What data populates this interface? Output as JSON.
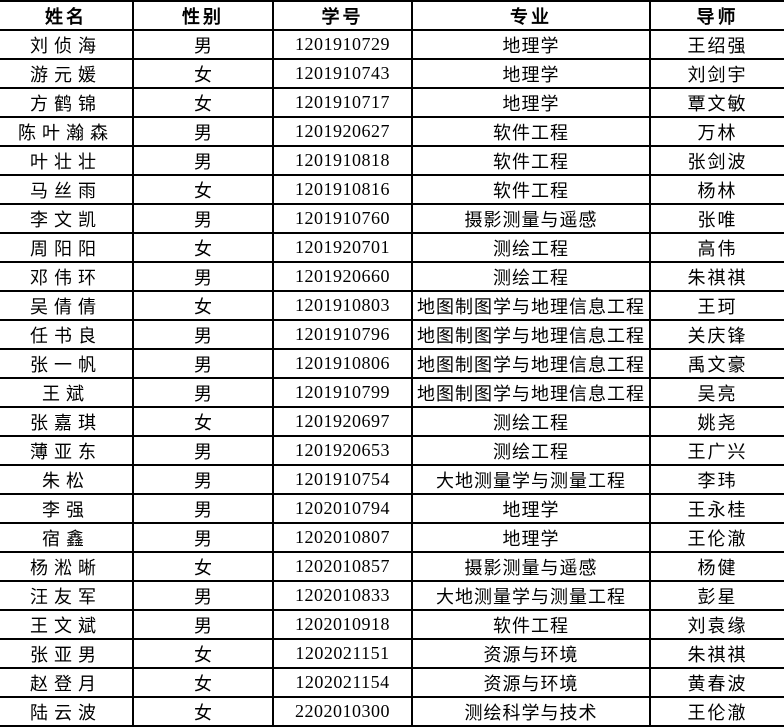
{
  "colors": {
    "background": "#ffffff",
    "grid_border": "#000000",
    "text": "#000000"
  },
  "table": {
    "columns": [
      {
        "key": "name",
        "label": "姓名"
      },
      {
        "key": "gender",
        "label": "性别"
      },
      {
        "key": "student_id",
        "label": "学号"
      },
      {
        "key": "major",
        "label": "专业"
      },
      {
        "key": "advisor",
        "label": "导师"
      }
    ],
    "rows": [
      {
        "name": "刘侦海",
        "gender": "男",
        "student_id": "1201910729",
        "major": "地理学",
        "advisor": "王绍强"
      },
      {
        "name": "游元媛",
        "gender": "女",
        "student_id": "1201910743",
        "major": "地理学",
        "advisor": "刘剑宇"
      },
      {
        "name": "方鹤锦",
        "gender": "女",
        "student_id": "1201910717",
        "major": "地理学",
        "advisor": "覃文敏"
      },
      {
        "name": "陈叶瀚森",
        "gender": "男",
        "student_id": "1201920627",
        "major": "软件工程",
        "advisor": "万林"
      },
      {
        "name": "叶壮壮",
        "gender": "男",
        "student_id": "1201910818",
        "major": "软件工程",
        "advisor": "张剑波"
      },
      {
        "name": "马丝雨",
        "gender": "女",
        "student_id": "1201910816",
        "major": "软件工程",
        "advisor": "杨林"
      },
      {
        "name": "李文凯",
        "gender": "男",
        "student_id": "1201910760",
        "major": "摄影测量与遥感",
        "advisor": "张唯"
      },
      {
        "name": "周阳阳",
        "gender": "女",
        "student_id": "1201920701",
        "major": "测绘工程",
        "advisor": "高伟"
      },
      {
        "name": "邓伟环",
        "gender": "男",
        "student_id": "1201920660",
        "major": "测绘工程",
        "advisor": "朱祺祺"
      },
      {
        "name": "吴倩倩",
        "gender": "女",
        "student_id": "1201910803",
        "major": "地图制图学与地理信息工程",
        "advisor": "王珂"
      },
      {
        "name": "任书良",
        "gender": "男",
        "student_id": "1201910796",
        "major": "地图制图学与地理信息工程",
        "advisor": "关庆锋"
      },
      {
        "name": "张一帆",
        "gender": "男",
        "student_id": "1201910806",
        "major": "地图制图学与地理信息工程",
        "advisor": "禹文豪"
      },
      {
        "name": "王斌",
        "gender": "男",
        "student_id": "1201910799",
        "major": "地图制图学与地理信息工程",
        "advisor": "吴亮"
      },
      {
        "name": "张嘉琪",
        "gender": "女",
        "student_id": "1201920697",
        "major": "测绘工程",
        "advisor": "姚尧"
      },
      {
        "name": "薄亚东",
        "gender": "男",
        "student_id": "1201920653",
        "major": "测绘工程",
        "advisor": "王广兴"
      },
      {
        "name": "朱松",
        "gender": "男",
        "student_id": "1201910754",
        "major": "大地测量学与测量工程",
        "advisor": "李玮"
      },
      {
        "name": "李强",
        "gender": "男",
        "student_id": "1202010794",
        "major": "地理学",
        "advisor": "王永桂"
      },
      {
        "name": "宿鑫",
        "gender": "男",
        "student_id": "1202010807",
        "major": "地理学",
        "advisor": "王伦澈"
      },
      {
        "name": "杨淞晰",
        "gender": "女",
        "student_id": "1202010857",
        "major": "摄影测量与遥感",
        "advisor": "杨健"
      },
      {
        "name": "汪友军",
        "gender": "男",
        "student_id": "1202010833",
        "major": "大地测量学与测量工程",
        "advisor": "彭星"
      },
      {
        "name": "王文斌",
        "gender": "男",
        "student_id": "1202010918",
        "major": "软件工程",
        "advisor": "刘袁缘"
      },
      {
        "name": "张亚男",
        "gender": "女",
        "student_id": "1202021151",
        "major": "资源与环境",
        "advisor": "朱祺祺"
      },
      {
        "name": "赵登月",
        "gender": "女",
        "student_id": "1202021154",
        "major": "资源与环境",
        "advisor": "黄春波"
      },
      {
        "name": "陆云波",
        "gender": "女",
        "student_id": "2202010300",
        "major": "测绘科学与技术",
        "advisor": "王伦澈"
      }
    ]
  }
}
